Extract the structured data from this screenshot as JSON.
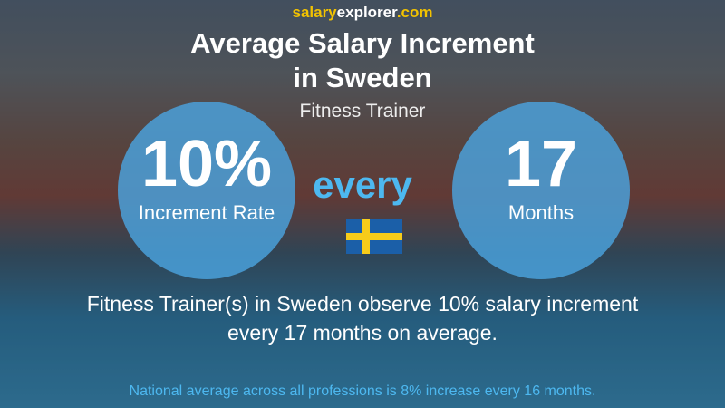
{
  "site": {
    "part1": "salary",
    "part2": "explorer",
    "part3": ".com"
  },
  "title": {
    "line1": "Average Salary Increment",
    "line2": "in Sweden"
  },
  "subtitle": "Fitness Trainer",
  "left_circle": {
    "value": "10%",
    "label": "Increment Rate"
  },
  "connector": "every",
  "right_circle": {
    "value": "17",
    "label": "Months"
  },
  "description": {
    "line1": "Fitness Trainer(s) in Sweden observe 10% salary increment",
    "line2": "every 17 months on average."
  },
  "footnote": "National average across all professions is 8% increase every 16 months."
}
